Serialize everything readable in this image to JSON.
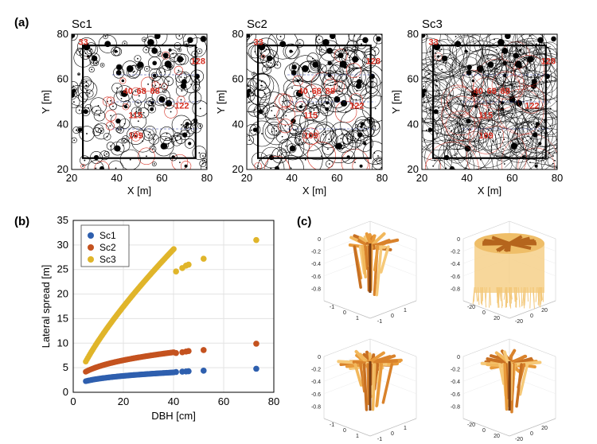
{
  "panels": {
    "a_label": "(a)",
    "b_label": "(b)",
    "c_label": "(c)"
  },
  "maps": {
    "titles": [
      "Sc1",
      "Sc2",
      "Sc3"
    ],
    "xlabel": "X [m]",
    "ylabel": "Y [m]",
    "xticks": [
      "20",
      "40",
      "60",
      "80"
    ],
    "yticks": [
      "20",
      "40",
      "60",
      "80"
    ],
    "tree_labels": [
      "33",
      "128",
      "40",
      "68",
      "88",
      "122",
      "115",
      "109"
    ]
  },
  "chart_data": {
    "type": "scatter",
    "xlabel": "DBH [cm]",
    "ylabel": "Lateral spread [m]",
    "xlim": [
      0,
      80
    ],
    "ylim": [
      0,
      35
    ],
    "xticks": [
      0,
      20,
      40,
      60,
      80
    ],
    "yticks": [
      0,
      5,
      10,
      15,
      20,
      25,
      30,
      35
    ],
    "grid": true,
    "legend_position": "top-left",
    "series": [
      {
        "name": "Sc1",
        "color": "#2e5fae",
        "coef": 1.44,
        "power": 0.28,
        "outliers": [
          [
            41,
            4.13
          ],
          [
            43.5,
            4.2
          ],
          [
            45,
            4.25
          ],
          [
            46,
            4.28
          ],
          [
            52,
            4.4
          ],
          [
            73,
            4.8
          ]
        ]
      },
      {
        "name": "Sc2",
        "color": "#c4521f",
        "coef": 2.5,
        "power": 0.32,
        "outliers": [
          [
            41,
            8.0
          ],
          [
            43.5,
            8.15
          ],
          [
            45,
            8.3
          ],
          [
            46,
            8.4
          ],
          [
            52,
            8.6
          ],
          [
            73,
            9.9
          ]
        ]
      },
      {
        "name": "Sc3",
        "color": "#e0b52a",
        "coef": 1.9,
        "power": 0.74,
        "outliers": [
          [
            41,
            24.6
          ],
          [
            43.5,
            25.3
          ],
          [
            45,
            25.8
          ],
          [
            46,
            26.0
          ],
          [
            52,
            27.2
          ],
          [
            73,
            31.0
          ]
        ]
      }
    ],
    "dbh_range": [
      5,
      40.5
    ]
  },
  "plots3d": {
    "small_ticks": [
      "-1",
      "0",
      "1"
    ],
    "large_ticks": [
      "-20",
      "0",
      "20"
    ],
    "z_ticks": [
      "0",
      "-0.2",
      "-0.4",
      "-0.6",
      "-0.8"
    ]
  }
}
